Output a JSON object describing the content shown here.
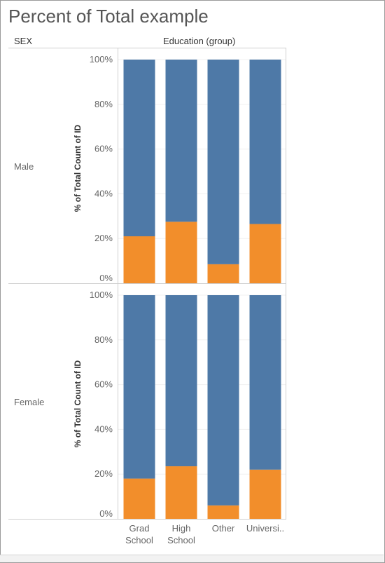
{
  "title": "Percent of Total example",
  "headers": {
    "row_field": "SEX",
    "column_field": "Education (group)"
  },
  "chart_data": {
    "type": "bar",
    "stacked": true,
    "categories": [
      "Grad School",
      "High School",
      "Other",
      "Universi.."
    ],
    "category_labels": [
      [
        "Grad",
        "School"
      ],
      [
        "High",
        "School"
      ],
      [
        "Other"
      ],
      [
        "Universi.."
      ]
    ],
    "ylabel": "% of Total Count of ID",
    "ylim": [
      0,
      100
    ],
    "y_ticks": [
      "0%",
      "20%",
      "40%",
      "60%",
      "80%",
      "100%"
    ],
    "grid": true,
    "colors": {
      "orange": "#f28e2b",
      "blue": "#4e79a7"
    },
    "panels": [
      {
        "row": "Male",
        "series": [
          {
            "color": "orange",
            "values": [
              21,
              27.5,
              8.5,
              26.5
            ]
          },
          {
            "color": "blue",
            "values": [
              79,
              72.5,
              91.5,
              73.5
            ]
          }
        ]
      },
      {
        "row": "Female",
        "series": [
          {
            "color": "orange",
            "values": [
              18,
              23.5,
              6,
              22
            ]
          },
          {
            "color": "blue",
            "values": [
              82,
              76.5,
              94,
              78
            ]
          }
        ]
      }
    ]
  }
}
